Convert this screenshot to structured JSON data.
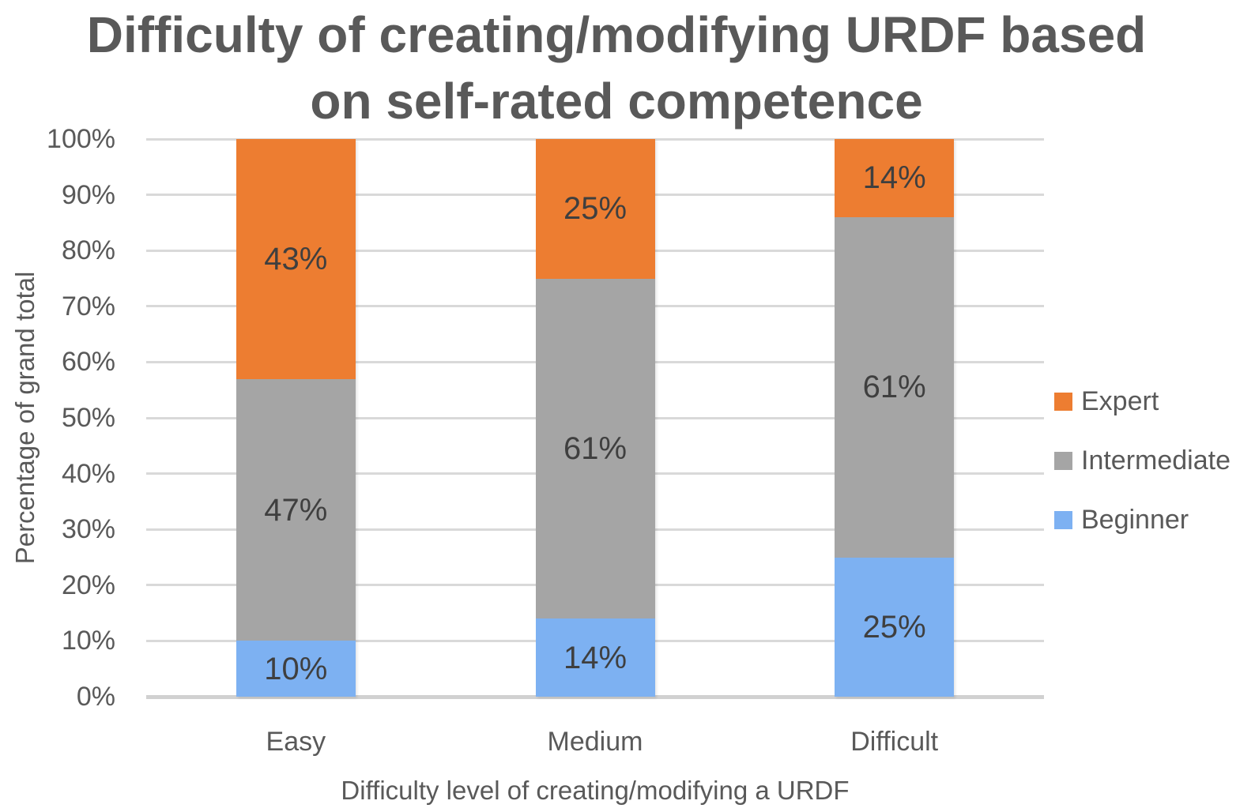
{
  "title_lines": [
    "Difficulty of creating/modifying URDF based",
    "on self-rated competence"
  ],
  "chart_data": {
    "type": "bar",
    "subtype": "stacked-column",
    "title": "Difficulty of creating/modifying URDF based on self-rated competence",
    "xlabel": "Difficulty level of creating/modifying a URDF",
    "ylabel": "Percentage of grand total",
    "categories": [
      "Easy",
      "Medium",
      "Difficult"
    ],
    "series": [
      {
        "name": "Beginner",
        "color": "#7DB1F2",
        "values": [
          10,
          14,
          25
        ],
        "labels": [
          "10%",
          "14%",
          "25%"
        ]
      },
      {
        "name": "Intermediate",
        "color": "#A5A5A5",
        "values": [
          47,
          61,
          61
        ],
        "labels": [
          "47%",
          "61%",
          "61%"
        ]
      },
      {
        "name": "Expert",
        "color": "#ED7D31",
        "values": [
          43,
          25,
          14
        ],
        "labels": [
          "43%",
          "25%",
          "14%"
        ]
      }
    ],
    "ylim": [
      0,
      100
    ],
    "yticks": [
      "0%",
      "10%",
      "20%",
      "30%",
      "40%",
      "50%",
      "60%",
      "70%",
      "80%",
      "90%",
      "100%"
    ],
    "grid": true,
    "legend_position": "right",
    "legend_items": [
      "Expert",
      "Intermediate",
      "Beginner"
    ]
  },
  "colors": {
    "title_text": "#595959",
    "axis_text": "#595959",
    "data_label_text": "#3F3F3F",
    "gridline": "#D9D9D9",
    "axis_line": "#D1D1D1",
    "expert": "#ED7D31",
    "intermediate": "#A5A5A5",
    "beginner": "#7DB1F2"
  }
}
